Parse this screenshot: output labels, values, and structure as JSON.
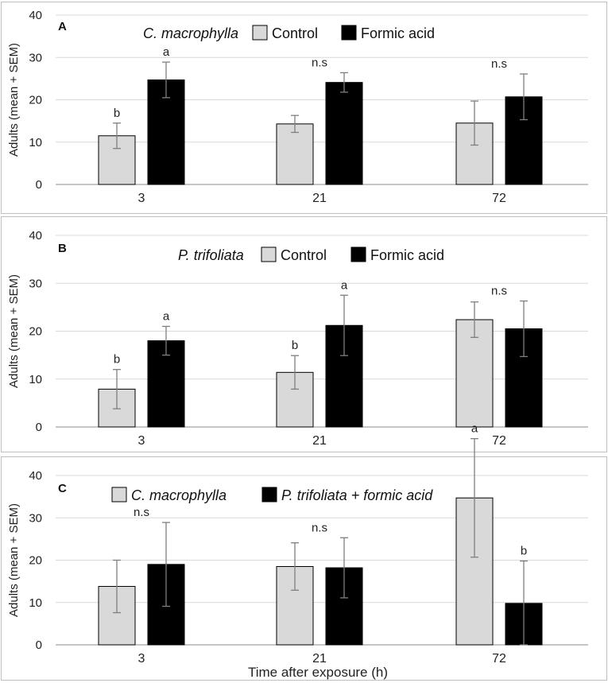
{
  "colors": {
    "control": "#d9d9d9",
    "treated": "#000000",
    "grid": "#d9d9d9",
    "border": "#bfbfbf",
    "errorbar": "#7f7f7f"
  },
  "x_axis_title": "Time after exposure (h)",
  "chart_data": [
    {
      "type": "bar",
      "panel": "A",
      "ylabel": "Adults (mean + SEM)",
      "ylim": [
        0,
        40
      ],
      "yticks": [
        0,
        10,
        20,
        30,
        40
      ],
      "categories": [
        "3",
        "21",
        "72"
      ],
      "legend_title": "C. macrophylla",
      "legend_title_italic": true,
      "series": [
        {
          "name": "Control",
          "values": [
            11.5,
            14.3,
            14.5
          ],
          "errors": [
            3.0,
            2.0,
            5.2
          ]
        },
        {
          "name": "Formic acid",
          "values": [
            24.7,
            24.1,
            20.7
          ],
          "errors": [
            4.2,
            2.3,
            5.4
          ]
        }
      ],
      "annotations": [
        {
          "category": 0,
          "series": 0,
          "text": "b"
        },
        {
          "category": 0,
          "series": 1,
          "text": "a"
        },
        {
          "category": 1,
          "series": null,
          "text": "n.s"
        },
        {
          "category": 2,
          "series": null,
          "text": "n.s"
        }
      ]
    },
    {
      "type": "bar",
      "panel": "B",
      "ylabel": "Adults (mean + SEM)",
      "ylim": [
        0,
        40
      ],
      "yticks": [
        0,
        10,
        20,
        30,
        40
      ],
      "categories": [
        "3",
        "21",
        "72"
      ],
      "legend_title": "P. trifoliata",
      "legend_title_italic": true,
      "series": [
        {
          "name": "Control",
          "values": [
            7.9,
            11.4,
            22.4
          ],
          "errors": [
            4.1,
            3.5,
            3.7
          ]
        },
        {
          "name": "Formic acid",
          "values": [
            18.0,
            21.2,
            20.5
          ],
          "errors": [
            3.0,
            6.3,
            5.8
          ]
        }
      ],
      "annotations": [
        {
          "category": 0,
          "series": 0,
          "text": "b"
        },
        {
          "category": 0,
          "series": 1,
          "text": "a"
        },
        {
          "category": 1,
          "series": 0,
          "text": "b"
        },
        {
          "category": 1,
          "series": 1,
          "text": "a"
        },
        {
          "category": 2,
          "series": null,
          "text": "n.s"
        }
      ]
    },
    {
      "type": "bar",
      "panel": "C",
      "ylabel": "Adults (mean + SEM)",
      "ylim": [
        0,
        40
      ],
      "yticks": [
        0,
        10,
        20,
        30,
        40
      ],
      "categories": [
        "3",
        "21",
        "72"
      ],
      "legend_title": "",
      "legend_title_italic": false,
      "series": [
        {
          "name": "C. macrophylla",
          "italic": true,
          "values": [
            13.8,
            18.5,
            34.7
          ],
          "errors": [
            6.2,
            5.6,
            14.0
          ]
        },
        {
          "name": "P. trifoliata + formic acid",
          "italic": true,
          "values": [
            19.0,
            18.2,
            9.8
          ],
          "errors": [
            9.9,
            7.1,
            10.0
          ]
        }
      ],
      "annotations": [
        {
          "category": 0,
          "series": null,
          "text": "n.s"
        },
        {
          "category": 1,
          "series": null,
          "text": "n.s"
        },
        {
          "category": 2,
          "series": 0,
          "text": "a"
        },
        {
          "category": 2,
          "series": 1,
          "text": "b"
        }
      ]
    }
  ]
}
